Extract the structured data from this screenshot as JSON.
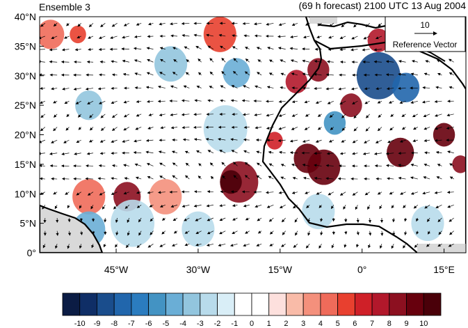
{
  "header": {
    "left_title": "Ensemble 3",
    "right_title": "(69 h forecast) 2100 UTC 13 Aug 2004"
  },
  "map": {
    "lat_ticks": [
      "40°N",
      "35°N",
      "30°N",
      "25°N",
      "20°N",
      "15°N",
      "10°N",
      "5°N",
      "0°"
    ],
    "lon_ticks": [
      "45°W",
      "30°W",
      "15°W",
      "0°",
      "15°E"
    ],
    "lat_range": [
      0,
      40
    ],
    "lon_range": [
      -59,
      19
    ],
    "reference_vector": {
      "value": "10",
      "label": "Reference Vector"
    }
  },
  "anomaly_blobs": [
    {
      "lon": -22.5,
      "lat": 12,
      "r": 3.5,
      "level": 8
    },
    {
      "lon": -24,
      "lat": 12,
      "r": 2,
      "level": 10
    },
    {
      "lon": -43,
      "lat": 9.5,
      "r": 2.5,
      "level": 8
    },
    {
      "lon": -50,
      "lat": 9.5,
      "r": 3,
      "level": 4
    },
    {
      "lon": -36,
      "lat": 9.5,
      "r": 3,
      "level": 3
    },
    {
      "lon": -57,
      "lat": 37,
      "r": 2.5,
      "level": 4
    },
    {
      "lon": -52,
      "lat": 37,
      "r": 1.5,
      "level": 5
    },
    {
      "lon": -26,
      "lat": 37,
      "r": 3,
      "level": 5
    },
    {
      "lon": -12,
      "lat": 29,
      "r": 2,
      "level": 7
    },
    {
      "lon": -8,
      "lat": 31,
      "r": 2,
      "level": 8
    },
    {
      "lon": -10,
      "lat": 16,
      "r": 2.5,
      "level": 9
    },
    {
      "lon": -7,
      "lat": 14.5,
      "r": 3,
      "level": 9
    },
    {
      "lon": -2,
      "lat": 25,
      "r": 2,
      "level": 8
    },
    {
      "lon": 7,
      "lat": 17,
      "r": 2.5,
      "level": 9
    },
    {
      "lon": 15,
      "lat": 20,
      "r": 2,
      "level": 9
    },
    {
      "lon": 3,
      "lat": 36,
      "r": 2,
      "level": 7
    },
    {
      "lon": -16,
      "lat": 19,
      "r": 1.5,
      "level": 6
    },
    {
      "lon": 18,
      "lat": 15,
      "r": 1.5,
      "level": 8
    },
    {
      "lon": 3,
      "lat": 30,
      "r": 4,
      "level": -8
    },
    {
      "lon": 8,
      "lat": 28,
      "r": 2.5,
      "level": -7
    },
    {
      "lon": -23,
      "lat": 30.5,
      "r": 2.5,
      "level": -4
    },
    {
      "lon": -50,
      "lat": 25,
      "r": 2.5,
      "level": -3
    },
    {
      "lon": -50,
      "lat": 4,
      "r": 3,
      "level": -4
    },
    {
      "lon": -35,
      "lat": 32,
      "r": 3,
      "level": -3
    },
    {
      "lon": -25,
      "lat": 21,
      "r": 4,
      "level": -2
    },
    {
      "lon": -42,
      "lat": 5,
      "r": 4,
      "level": -2
    },
    {
      "lon": -8,
      "lat": 7,
      "r": 3,
      "level": -2
    },
    {
      "lon": 12,
      "lat": 5,
      "r": 3,
      "level": -2
    },
    {
      "lon": -5,
      "lat": 22,
      "r": 2,
      "level": -5
    },
    {
      "lon": -30,
      "lat": 4,
      "r": 3,
      "level": -2
    }
  ],
  "colorbar": {
    "labels": [
      "-10",
      "-9",
      "-8",
      "-7",
      "-6",
      "-5",
      "-4",
      "-3",
      "-2",
      "-1",
      "0",
      "1",
      "2",
      "3",
      "4",
      "5",
      "6",
      "7",
      "8",
      "9",
      "10"
    ],
    "colors": [
      "#0b1c44",
      "#0f2e66",
      "#1a4d8c",
      "#2166ac",
      "#2b7cbf",
      "#4393c3",
      "#6aaed6",
      "#92c5de",
      "#b8dbeb",
      "#d9eef7",
      "#ffffff",
      "#ffffff",
      "#fde0dd",
      "#f9bba8",
      "#f4907c",
      "#ef6b5a",
      "#e8402f",
      "#cf2028",
      "#b2182b",
      "#8c1020",
      "#67000d",
      "#4a0009"
    ]
  }
}
